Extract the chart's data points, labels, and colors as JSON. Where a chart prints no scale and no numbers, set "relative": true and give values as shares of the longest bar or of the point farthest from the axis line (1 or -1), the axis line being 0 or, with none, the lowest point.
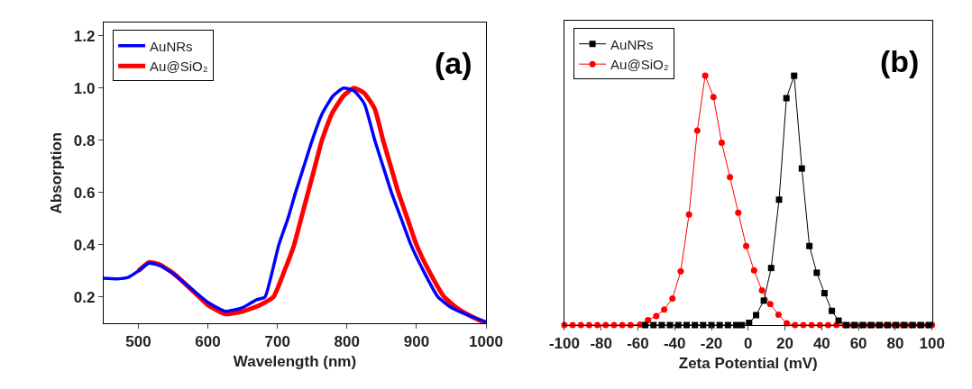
{
  "chart_data": [
    {
      "type": "line",
      "xlabel": "Wavelength (nm)",
      "ylabel": "Absorption",
      "xlim": [
        450,
        1000
      ],
      "xticks": [
        500,
        600,
        700,
        800,
        900,
        1000
      ],
      "ylim": [
        0.1,
        1.25
      ],
      "yticks": [
        0.2,
        0.4,
        0.6,
        0.8,
        {
          "value": 1.0,
          "label": "1.0"
        },
        1.2
      ],
      "legend": "top left",
      "marker": "none",
      "line_style": "solid",
      "annotations": [
        "(a)"
      ],
      "series": [
        {
          "name": "AuNRs",
          "color": "#0000ff",
          "x": [
            450,
            470,
            485,
            500,
            515,
            530,
            550,
            575,
            600,
            625,
            650,
            670,
            682,
            690,
            702,
            715,
            726,
            738,
            750,
            764,
            780,
            795,
            810,
            825,
            840,
            852,
            864,
            878,
            892,
            910,
            931,
            950,
            975,
            1000
          ],
          "values": [
            0.272,
            0.27,
            0.275,
            0.3,
            0.33,
            0.322,
            0.29,
            0.235,
            0.18,
            0.146,
            0.16,
            0.19,
            0.2,
            0.27,
            0.4,
            0.5,
            0.6,
            0.7,
            0.8,
            0.9,
            0.97,
            1.0,
            0.99,
            0.94,
            0.8,
            0.7,
            0.6,
            0.5,
            0.4,
            0.3,
            0.2,
            0.16,
            0.13,
            0.105
          ]
        },
        {
          "name": "Au@SiO₂",
          "color": "#ff0000",
          "x": [
            500,
            515,
            530,
            550,
            575,
            600,
            625,
            650,
            675,
            694,
            710,
            724,
            734,
            744,
            754,
            764,
            778,
            795,
            810,
            825,
            840,
            852,
            863,
            874,
            887,
            900,
            918,
            940,
            960,
            980,
            1000
          ],
          "values": [
            0.3,
            0.333,
            0.325,
            0.292,
            0.232,
            0.17,
            0.135,
            0.145,
            0.17,
            0.2,
            0.3,
            0.4,
            0.5,
            0.6,
            0.7,
            0.8,
            0.9,
            0.97,
            1.0,
            0.98,
            0.92,
            0.8,
            0.7,
            0.6,
            0.5,
            0.4,
            0.3,
            0.2,
            0.155,
            0.125,
            0.1
          ]
        }
      ]
    },
    {
      "type": "line",
      "xlabel": "Zeta Potential (mV)",
      "xlim": [
        -100,
        100
      ],
      "xticks": [
        -100,
        -80,
        -60,
        -40,
        -20,
        0,
        20,
        40,
        60,
        80,
        100
      ],
      "relative": true,
      "legend": "top left",
      "line_style": "solid",
      "annotations": [
        "(b)"
      ],
      "series": [
        {
          "name": "AuNRs",
          "color": "#000000",
          "marker": "square",
          "x": [
            -56,
            -51.5,
            -47,
            -42.5,
            -38,
            -33.5,
            -29,
            -24.5,
            -20,
            -15.5,
            -11,
            -6.5,
            -3.5,
            0.5,
            4.3,
            8.5,
            12.5,
            16.8,
            20.8,
            25.0,
            29.2,
            33.3,
            37.3,
            41.5,
            45.5,
            49.2,
            53.5,
            58,
            62.5,
            67,
            71.5,
            76,
            80.5,
            85,
            89.5,
            94,
            98.5
          ],
          "values": [
            0,
            0,
            0,
            0,
            0,
            0,
            0,
            0,
            0,
            0,
            0,
            0,
            0,
            0.009,
            0.04,
            0.098,
            0.229,
            0.503,
            0.91,
            1.0,
            0.628,
            0.317,
            0.21,
            0.128,
            0.057,
            0.018,
            0,
            0,
            0,
            0,
            0,
            0,
            0,
            0,
            0,
            0,
            0
          ]
        },
        {
          "name": "Au@SiO₂",
          "color": "#ff0000",
          "marker": "circle",
          "x": [
            -100,
            -95.5,
            -91,
            -86.5,
            -82,
            -77.5,
            -73,
            -68.5,
            -64,
            -58.8,
            -54.5,
            -50,
            -45.7,
            -41.2,
            -36.7,
            -32.2,
            -27.7,
            -23.4,
            -18.9,
            -14.4,
            -9.9,
            -5.4,
            -1.1,
            3.2,
            7.5,
            12.0,
            16.5,
            21.0,
            25.5,
            30,
            34.5,
            39,
            43.5,
            48,
            52.5,
            57,
            61.5,
            66,
            70.5,
            75,
            79.5,
            84,
            88.5,
            93,
            97.5,
            100
          ],
          "values": [
            0,
            0,
            0,
            0,
            0,
            0,
            0,
            0,
            0,
            0.002,
            0.02,
            0.036,
            0.062,
            0.107,
            0.216,
            0.443,
            0.78,
            1.0,
            0.915,
            0.731,
            0.593,
            0.451,
            0.317,
            0.219,
            0.139,
            0.084,
            0.042,
            0.007,
            0,
            0,
            0,
            0,
            0,
            0,
            0,
            0,
            0,
            0,
            0,
            0,
            0,
            0,
            0,
            0,
            0,
            0
          ]
        }
      ]
    }
  ]
}
